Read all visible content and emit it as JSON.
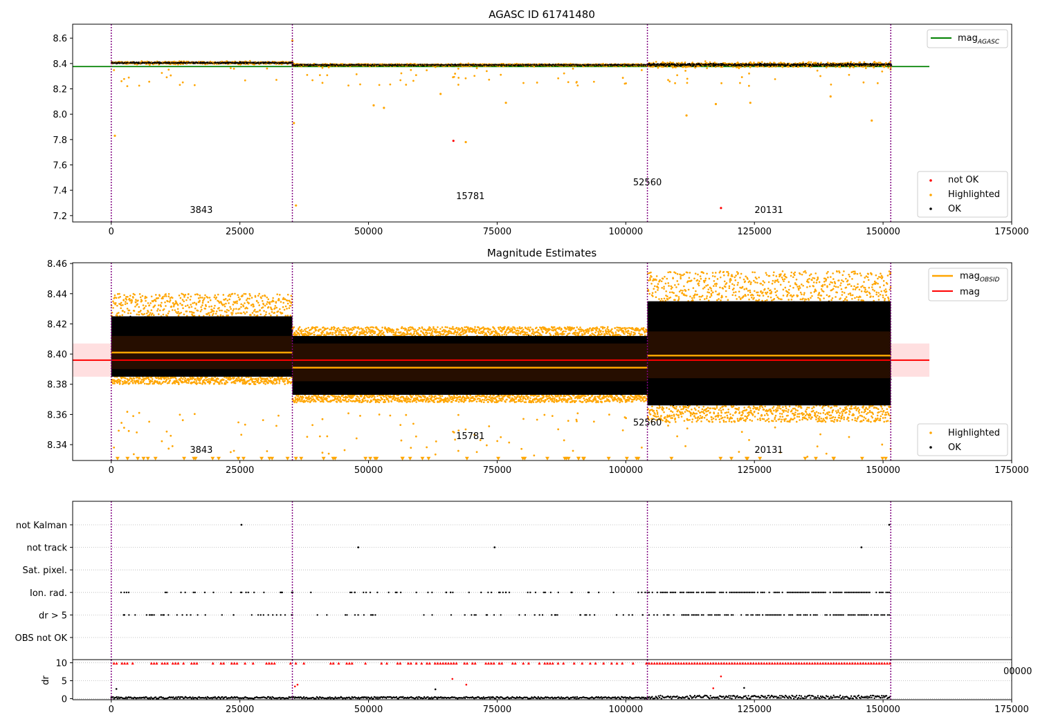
{
  "chart_data": [
    {
      "type": "scatter",
      "title": "AGASC ID 61741480",
      "xlim": [
        -7500,
        175000
      ],
      "ylim": [
        7.15,
        8.71
      ],
      "x_ticks": [
        0,
        25000,
        50000,
        75000,
        100000,
        125000,
        150000,
        175000
      ],
      "x_tick_labels": [
        "0",
        "25000",
        "50000",
        "75000",
        "100000",
        "125000",
        "150000",
        "175000"
      ],
      "y_ticks": [
        7.2,
        7.4,
        7.6,
        7.8,
        8.0,
        8.2,
        8.4,
        8.6
      ],
      "y_tick_labels": [
        "7.2",
        "7.4",
        "7.6",
        "7.8",
        "8.0",
        "8.2",
        "8.4",
        "8.6"
      ],
      "obs_boundaries": [
        0,
        35200,
        104200,
        151500
      ],
      "obs_labels": [
        {
          "text": "3843",
          "x": 17500,
          "y": 7.22
        },
        {
          "text": "15781",
          "x": 69800,
          "y": 7.33
        },
        {
          "text": "52560",
          "x": 104200,
          "y": 7.44
        },
        {
          "text": "20131",
          "x": 127800,
          "y": 7.22
        }
      ],
      "reference_line": {
        "name": "mag_AGASC",
        "value": 8.376,
        "x_range": [
          -7500,
          159000
        ],
        "color": "#008000"
      },
      "segments": [
        {
          "x": [
            0,
            35200
          ],
          "center": 8.405,
          "spread": 0.012
        },
        {
          "x": [
            35200,
            104200
          ],
          "center": 8.388,
          "spread": 0.01
        },
        {
          "x": [
            104200,
            151500
          ],
          "center": 8.39,
          "spread": 0.022
        }
      ],
      "outliers": [
        {
          "x": 700,
          "y": 7.83,
          "series": "Highlighted"
        },
        {
          "x": 35200,
          "y": 8.58,
          "series": "Highlighted"
        },
        {
          "x": 35500,
          "y": 7.93,
          "series": "Highlighted"
        },
        {
          "x": 35900,
          "y": 7.28,
          "series": "Highlighted"
        },
        {
          "x": 51000,
          "y": 8.07,
          "series": "Highlighted"
        },
        {
          "x": 53000,
          "y": 8.05,
          "series": "Highlighted"
        },
        {
          "x": 64000,
          "y": 8.16,
          "series": "Highlighted"
        },
        {
          "x": 68900,
          "y": 7.78,
          "series": "Highlighted"
        },
        {
          "x": 76700,
          "y": 8.09,
          "series": "Highlighted"
        },
        {
          "x": 66500,
          "y": 7.79,
          "series": "not OK"
        },
        {
          "x": 111800,
          "y": 7.99,
          "series": "Highlighted"
        },
        {
          "x": 117500,
          "y": 8.08,
          "series": "Highlighted"
        },
        {
          "x": 118500,
          "y": 7.26,
          "series": "not OK"
        },
        {
          "x": 124200,
          "y": 8.09,
          "series": "Highlighted"
        },
        {
          "x": 139800,
          "y": 8.14,
          "series": "Highlighted"
        },
        {
          "x": 147800,
          "y": 7.95,
          "series": "Highlighted"
        }
      ],
      "series": [
        {
          "name": "not OK",
          "color": "#ff0000"
        },
        {
          "name": "Highlighted",
          "color": "#ffa500"
        },
        {
          "name": "OK",
          "color": "#000000"
        }
      ],
      "legend_top": {
        "label": "mag",
        "subscript": "AGASC",
        "placement": "top-right"
      },
      "legend_bottom": {
        "labels": [
          "not OK",
          "Highlighted",
          "OK"
        ],
        "placement": "bottom-right"
      }
    },
    {
      "type": "scatter",
      "title": "Magnitude Estimates",
      "xlim": [
        -7500,
        175000
      ],
      "ylim": [
        8.3295,
        8.4605
      ],
      "x_ticks": [
        0,
        25000,
        50000,
        75000,
        100000,
        125000,
        150000,
        175000
      ],
      "x_tick_labels": [
        "0",
        "25000",
        "50000",
        "75000",
        "100000",
        "125000",
        "150000",
        "175000"
      ],
      "y_ticks": [
        8.34,
        8.36,
        8.38,
        8.4,
        8.42,
        8.44,
        8.46
      ],
      "y_tick_labels": [
        "8.34",
        "8.36",
        "8.38",
        "8.40",
        "8.42",
        "8.44",
        "8.46"
      ],
      "obs_boundaries": [
        0,
        35200,
        104200,
        151500
      ],
      "obs_labels": [
        {
          "text": "3843",
          "x": 17500,
          "y": 8.3345
        },
        {
          "text": "15781",
          "x": 69800,
          "y": 8.3437
        },
        {
          "text": "52560",
          "x": 104200,
          "y": 8.3527
        },
        {
          "text": "20131",
          "x": 127800,
          "y": 8.3345
        }
      ],
      "mag_line": {
        "name": "mag",
        "value": 8.396,
        "band": [
          8.385,
          8.407
        ],
        "x_range": [
          -7500,
          159000
        ],
        "color": "#ff0000"
      },
      "obsid_segments": [
        {
          "x": [
            0,
            35200
          ],
          "mag_obsid": 8.401,
          "band": [
            8.39,
            8.412
          ],
          "ok_range": [
            8.385,
            8.425
          ],
          "hl_range": [
            8.425,
            8.44
          ],
          "low_range": [
            8.38,
            8.385
          ]
        },
        {
          "x": [
            35200,
            104200
          ],
          "mag_obsid": 8.391,
          "band": [
            8.382,
            8.407
          ],
          "ok_range": [
            8.373,
            8.412
          ],
          "hl_range": [
            8.412,
            8.418
          ],
          "low_range": [
            8.368,
            8.373
          ]
        },
        {
          "x": [
            104200,
            151500
          ],
          "mag_obsid": 8.399,
          "band": [
            8.384,
            8.415
          ],
          "ok_range": [
            8.366,
            8.435
          ],
          "hl_range": [
            8.435,
            8.455
          ],
          "low_range": [
            8.355,
            8.366
          ]
        }
      ],
      "series": [
        {
          "name": "Highlighted",
          "color": "#ffa500"
        },
        {
          "name": "OK",
          "color": "#000000"
        }
      ],
      "legend_top": [
        {
          "label": "mag",
          "subscript": "OBSID",
          "color": "#ffa500"
        },
        {
          "label": "mag",
          "subscript": "",
          "color": "#ff0000"
        }
      ],
      "legend_bottom": {
        "labels": [
          "Highlighted",
          "OK"
        ],
        "placement": "bottom-right"
      }
    },
    {
      "type": "scatter",
      "title": "",
      "flag_rows": [
        "not Kalman",
        "not track",
        "Sat. pixel.",
        "Ion. rad.",
        "dr > 5",
        "OBS not OK"
      ],
      "flag_points": {
        "not Kalman": [
          25300,
          151200
        ],
        "not track": [
          48000,
          74500,
          145800
        ],
        "Sat. pixel.": []
      },
      "obs_boundaries": [
        0,
        35200,
        104200,
        151500
      ],
      "xlim": [
        -7500,
        175000
      ],
      "x_ticks": [
        0,
        25000,
        50000,
        75000,
        100000,
        125000,
        150000,
        175000
      ],
      "x_tick_labels": [
        "0",
        "25000",
        "50000",
        "75000",
        "100000",
        "125000",
        "150000",
        "175000"
      ],
      "stray_tick_label": "00000",
      "dr_panel": {
        "ylabel": "dr",
        "ylim": [
          -0.3,
          10.3
        ],
        "y_ticks": [
          0,
          5,
          10
        ],
        "y_tick_labels": [
          "0",
          "5",
          "10"
        ],
        "outliers": [
          {
            "x": 35700,
            "y": 3.4,
            "color": "#ff0000"
          },
          {
            "x": 36200,
            "y": 3.9,
            "color": "#ff0000"
          },
          {
            "x": 66300,
            "y": 5.5,
            "color": "#ff0000"
          },
          {
            "x": 69000,
            "y": 3.9,
            "color": "#ff0000"
          },
          {
            "x": 117000,
            "y": 2.9,
            "color": "#ff0000"
          },
          {
            "x": 118500,
            "y": 6.2,
            "color": "#ff0000"
          },
          {
            "x": 1000,
            "y": 2.7,
            "color": "#000000"
          },
          {
            "x": 63000,
            "y": 2.6,
            "color": "#000000"
          },
          {
            "x": 123000,
            "y": 3.0,
            "color": "#000000"
          }
        ]
      }
    }
  ]
}
